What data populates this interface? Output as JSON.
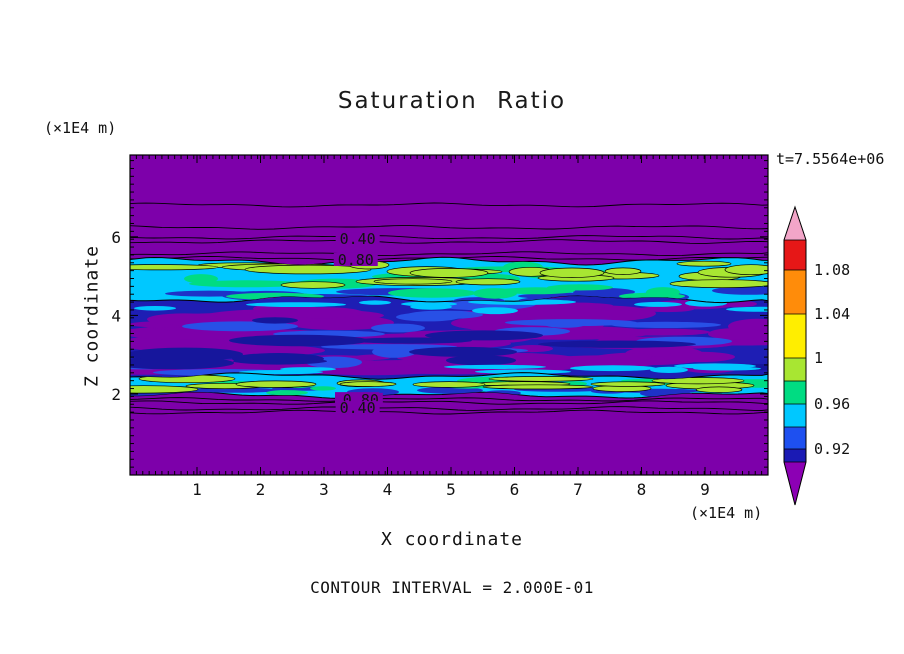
{
  "chart_data": {
    "type": "heatmap",
    "title": "Saturation Ratio",
    "xlabel": "X coordinate",
    "ylabel": "Z coordinate",
    "x_unit_label": "(×1E4 m)",
    "y_unit_label": "(×1E4 m)",
    "time_label": "t=7.5564e+06",
    "contour_note": "CONTOUR INTERVAL = 2.000E-01",
    "contour_interval": 0.2,
    "x_ticks": [
      "1",
      "2",
      "3",
      "4",
      "5",
      "6",
      "7",
      "8",
      "9"
    ],
    "y_ticks": [
      "2",
      "4",
      "6"
    ],
    "x_range": [
      0,
      10
    ],
    "z_range": [
      0,
      8.1
    ],
    "grid": false,
    "legend_position": "right",
    "palette": {
      "purple": "#7d00aa",
      "navy": "#1e1eb4",
      "dark_navy": "#16169c",
      "blue": "#2850e6",
      "band_blue": "#1e32c8",
      "cyan": "#00c8ff",
      "spring_green": "#00dc82",
      "lime": "#a8e632",
      "ink": "#111111"
    },
    "bands": [
      {
        "name": "upper-purple-zone",
        "z_from": 5.38,
        "z_to": 8.14,
        "base_color": "#7d00aa"
      },
      {
        "name": "upper-mixed-band",
        "z_from": 4.42,
        "z_to": 5.38,
        "base_color": "#00c8ff"
      },
      {
        "name": "middle-zone",
        "z_from": 2.36,
        "z_to": 4.52,
        "base_color": "#1e1eb4"
      },
      {
        "name": "lower-mixed-band",
        "z_from": 1.97,
        "z_to": 2.46,
        "base_color": "#00c8ff"
      },
      {
        "name": "lower-purple-zone",
        "z_from": 0,
        "z_to": 1.97,
        "base_color": "#7d00aa"
      }
    ],
    "contour_lines_z": [
      6.81,
      6.24,
      5.99,
      5.88,
      5.57,
      5.45,
      1.86,
      1.78,
      1.63,
      1.54
    ],
    "contour_line_labels": [
      {
        "text": "0.40",
        "x": 3.53,
        "z": 5.94
      },
      {
        "text": "0.80",
        "x": 3.5,
        "z": 5.41
      },
      {
        "text": "0.20",
        "x": 3.52,
        "z": 1.87
      },
      {
        "text": "0.80",
        "x": 3.58,
        "z": 1.85
      },
      {
        "text": "0.40",
        "x": 3.53,
        "z": 1.64
      }
    ],
    "colorbar": {
      "tick_labels": [
        "1.08",
        "1.04",
        "1",
        "0.96",
        "0.92"
      ],
      "colors_top_to_bottom": [
        "#f2a5c8",
        "#e61717",
        "#ff8c0a",
        "#ffee00",
        "#a8e632",
        "#00dc82",
        "#00c8ff",
        "#1e50f0",
        "#1a1ab4",
        "#8c00b4"
      ]
    }
  }
}
